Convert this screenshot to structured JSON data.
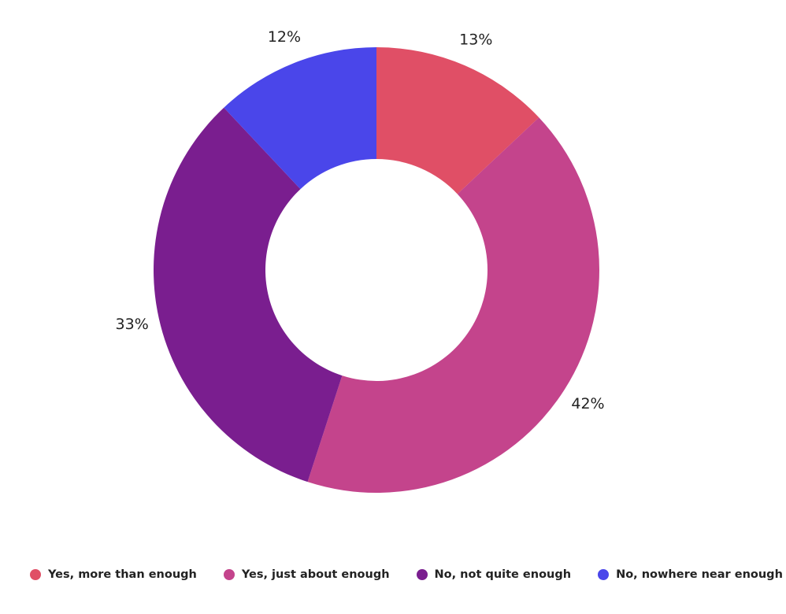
{
  "chart_data": {
    "type": "pie",
    "variant": "donut",
    "title": "",
    "categories": [
      "Yes, more than enough",
      "Yes, just about enough",
      "No, not quite enough",
      "No, nowhere near enough"
    ],
    "values": [
      13,
      42,
      33,
      12
    ],
    "value_labels": [
      "13%",
      "42%",
      "33%",
      "12%"
    ],
    "colors": [
      "#e04f66",
      "#c4448c",
      "#7a1e8f",
      "#4a46ea"
    ],
    "legend_position": "bottom"
  }
}
